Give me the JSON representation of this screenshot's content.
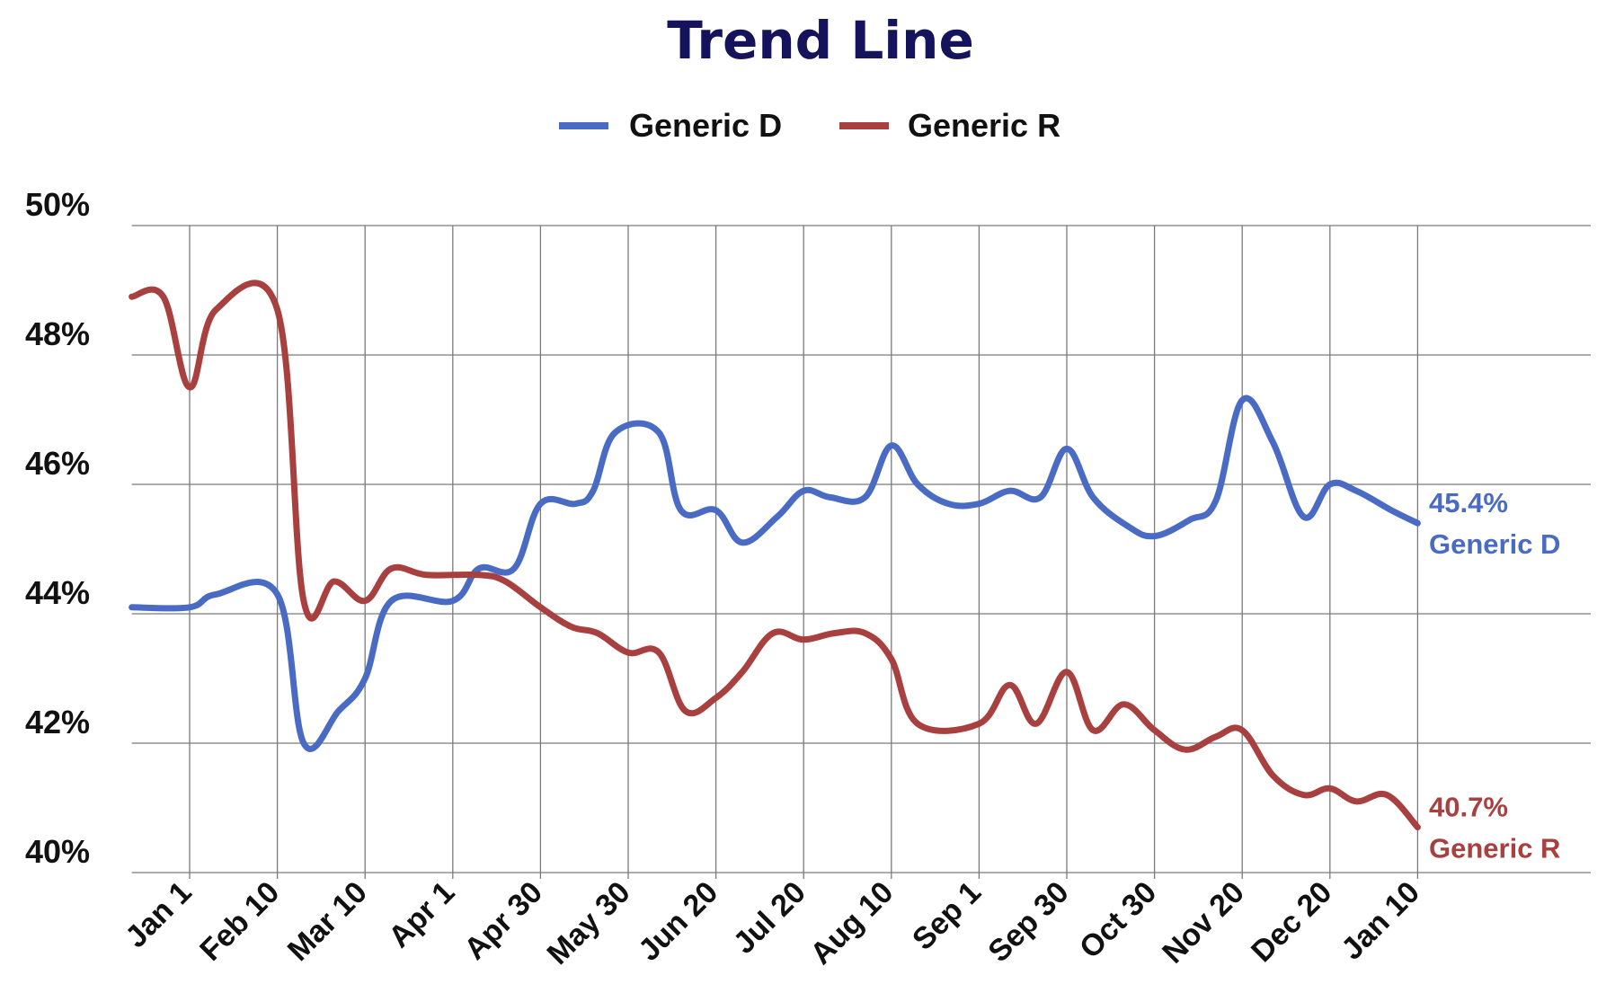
{
  "chart_data": {
    "type": "line",
    "title": "Trend Line",
    "title_color": "#14135c",
    "categories": [
      "Jan 1",
      "Feb 10",
      "Mar 10",
      "Apr 1",
      "Apr 30",
      "May 30",
      "Jun 20",
      "Jul 20",
      "Aug 10",
      "Sep 1",
      "Sep 30",
      "Oct 30",
      "Nov 20",
      "Dec 20",
      "Jan 10"
    ],
    "x_index_range": [
      -0.66,
      14
    ],
    "yticks": [
      "40%",
      "42%",
      "44%",
      "46%",
      "48%",
      "50%"
    ],
    "ylim": [
      40,
      50
    ],
    "grid": true,
    "legend": {
      "position": "top-center"
    },
    "series": [
      {
        "name": "Generic D",
        "color": "#4a6bc4",
        "end_value_label": "45.4%",
        "end_name_label": "Generic D",
        "points": [
          [
            -0.66,
            44.1
          ],
          [
            0,
            44.1
          ],
          [
            0.3,
            44.3
          ],
          [
            1,
            44.3
          ],
          [
            1.3,
            42.0
          ],
          [
            1.7,
            42.5
          ],
          [
            2,
            43.0
          ],
          [
            2.3,
            44.2
          ],
          [
            3,
            44.2
          ],
          [
            3.3,
            44.7
          ],
          [
            3.7,
            44.7
          ],
          [
            4,
            45.7
          ],
          [
            4.4,
            45.7
          ],
          [
            4.6,
            45.9
          ],
          [
            4.85,
            46.8
          ],
          [
            5.35,
            46.8
          ],
          [
            5.6,
            45.6
          ],
          [
            6,
            45.6
          ],
          [
            6.3,
            45.1
          ],
          [
            6.7,
            45.5
          ],
          [
            7,
            45.9
          ],
          [
            7.3,
            45.8
          ],
          [
            7.7,
            45.8
          ],
          [
            8,
            46.6
          ],
          [
            8.3,
            46.0
          ],
          [
            8.65,
            45.7
          ],
          [
            9,
            45.7
          ],
          [
            9.35,
            45.9
          ],
          [
            9.7,
            45.8
          ],
          [
            10,
            46.55
          ],
          [
            10.3,
            45.8
          ],
          [
            10.7,
            45.35
          ],
          [
            11,
            45.2
          ],
          [
            11.4,
            45.45
          ],
          [
            11.7,
            45.75
          ],
          [
            12,
            47.3
          ],
          [
            12.35,
            46.65
          ],
          [
            12.7,
            45.5
          ],
          [
            13,
            46.0
          ],
          [
            13.3,
            45.9
          ],
          [
            13.7,
            45.6
          ],
          [
            14,
            45.4
          ]
        ]
      },
      {
        "name": "Generic R",
        "color": "#a8403f",
        "end_value_label": "40.7%",
        "end_name_label": "Generic R",
        "points": [
          [
            -0.66,
            48.9
          ],
          [
            -0.3,
            48.9
          ],
          [
            0,
            47.5
          ],
          [
            0.3,
            48.7
          ],
          [
            1,
            48.7
          ],
          [
            1.3,
            44.2
          ],
          [
            1.65,
            44.5
          ],
          [
            2,
            44.2
          ],
          [
            2.3,
            44.7
          ],
          [
            2.7,
            44.6
          ],
          [
            3.3,
            44.6
          ],
          [
            3.6,
            44.5
          ],
          [
            4,
            44.1
          ],
          [
            4.35,
            43.8
          ],
          [
            4.65,
            43.7
          ],
          [
            5,
            43.4
          ],
          [
            5.35,
            43.4
          ],
          [
            5.65,
            42.5
          ],
          [
            6,
            42.7
          ],
          [
            6.3,
            43.1
          ],
          [
            6.65,
            43.7
          ],
          [
            7,
            43.6
          ],
          [
            7.35,
            43.7
          ],
          [
            7.7,
            43.7
          ],
          [
            8,
            43.3
          ],
          [
            8.3,
            42.3
          ],
          [
            9,
            42.3
          ],
          [
            9.35,
            42.9
          ],
          [
            9.65,
            42.3
          ],
          [
            10,
            43.1
          ],
          [
            10.3,
            42.2
          ],
          [
            10.65,
            42.6
          ],
          [
            11,
            42.2
          ],
          [
            11.35,
            41.9
          ],
          [
            11.7,
            42.1
          ],
          [
            12,
            42.2
          ],
          [
            12.35,
            41.5
          ],
          [
            12.7,
            41.2
          ],
          [
            13,
            41.3
          ],
          [
            13.3,
            41.1
          ],
          [
            13.65,
            41.2
          ],
          [
            14,
            40.7
          ]
        ]
      }
    ]
  }
}
